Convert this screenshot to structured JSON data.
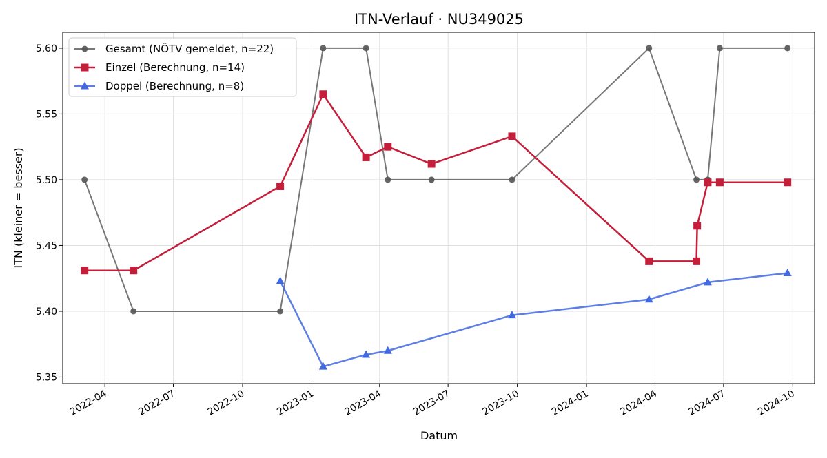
{
  "chart_data": {
    "type": "line",
    "title": "ITN-Verlauf · NU349025",
    "xlabel": "Datum",
    "ylabel": "ITN  (kleiner = besser)",
    "x_axis_type": "date",
    "xlim": [
      "2022-02-04",
      "2024-10-30"
    ],
    "ylim": [
      5.345,
      5.612
    ],
    "x_ticks": [
      "2022-04-01",
      "2022-07-01",
      "2022-10-01",
      "2023-01-01",
      "2023-04-01",
      "2023-07-01",
      "2023-10-01",
      "2024-01-01",
      "2024-04-01",
      "2024-07-01",
      "2024-10-01"
    ],
    "x_tick_labels": [
      "2022-04",
      "2022-07",
      "2022-10",
      "2023-01",
      "2023-04",
      "2023-07",
      "2023-10",
      "2024-01",
      "2024-04",
      "2024-07",
      "2024-10"
    ],
    "y_ticks": [
      5.35,
      5.4,
      5.45,
      5.5,
      5.55,
      5.6
    ],
    "y_tick_labels": [
      "5.35",
      "5.40",
      "5.45",
      "5.50",
      "5.55",
      "5.60"
    ],
    "grid": true,
    "legend_position": "top-left",
    "series": [
      {
        "name": "Gesamt (NÖTV gemeldet, n=22)",
        "color": "#555555",
        "marker": "circle",
        "x": [
          "2022-03-05",
          "2022-05-09",
          "2022-11-20",
          "2023-01-16",
          "2023-03-14",
          "2023-04-12",
          "2023-06-09",
          "2023-09-24",
          "2024-03-24",
          "2024-05-26",
          "2024-06-10",
          "2024-06-26",
          "2024-09-24"
        ],
        "y": [
          5.5,
          5.4,
          5.4,
          5.6,
          5.6,
          5.5,
          5.5,
          5.5,
          5.6,
          5.5,
          5.5,
          5.6,
          5.6
        ]
      },
      {
        "name": "Einzel (Berechnung, n=14)",
        "color": "#c41e3a",
        "marker": "square",
        "x": [
          "2022-03-05",
          "2022-05-09",
          "2022-11-20",
          "2023-01-16",
          "2023-03-14",
          "2023-04-12",
          "2023-06-09",
          "2023-09-24",
          "2024-03-24",
          "2024-05-26",
          "2024-05-27",
          "2024-06-10",
          "2024-06-26",
          "2024-09-24"
        ],
        "y": [
          5.431,
          5.431,
          5.495,
          5.565,
          5.517,
          5.525,
          5.512,
          5.533,
          5.438,
          5.438,
          5.465,
          5.498,
          5.498,
          5.498
        ]
      },
      {
        "name": "Doppel (Berechnung, n=8)",
        "color": "#4169e1",
        "marker": "triangle",
        "x": [
          "2022-11-20",
          "2023-01-16",
          "2023-03-14",
          "2023-04-12",
          "2023-09-24",
          "2024-03-24",
          "2024-06-10",
          "2024-09-24"
        ],
        "y": [
          5.423,
          5.358,
          5.367,
          5.37,
          5.397,
          5.409,
          5.422,
          5.429
        ]
      }
    ]
  }
}
